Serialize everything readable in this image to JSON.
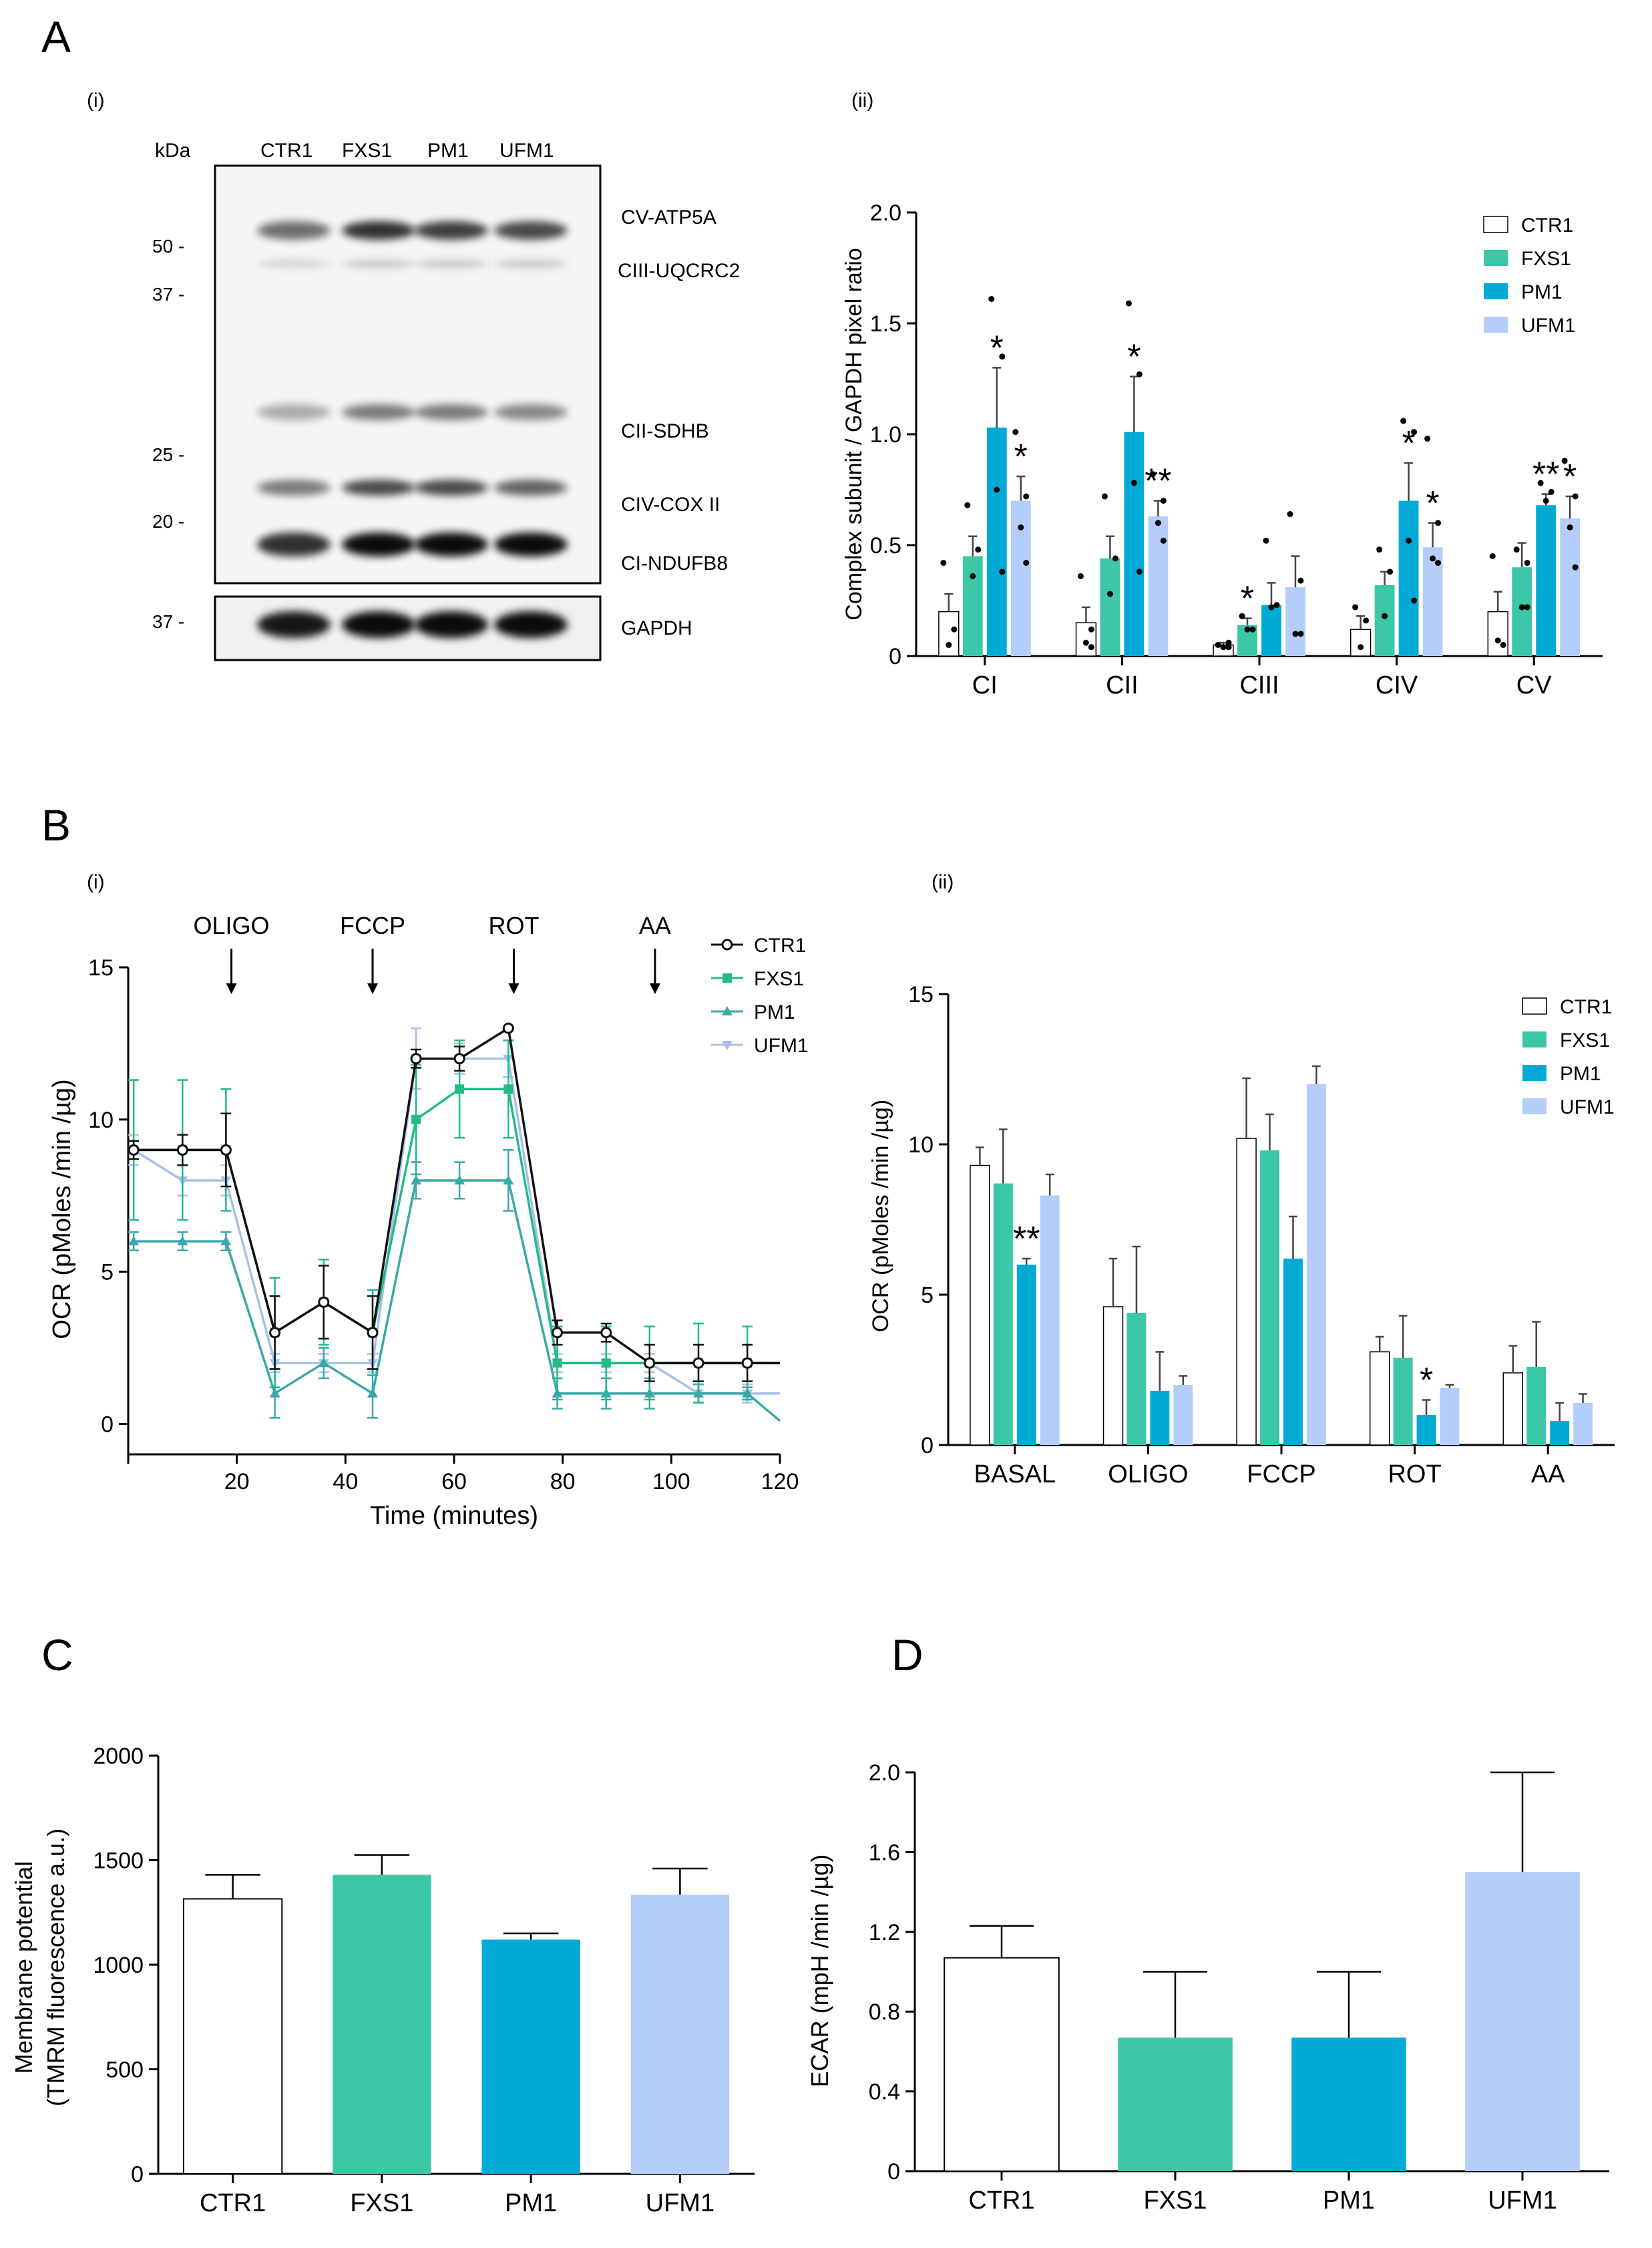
{
  "colors": {
    "CTR1": "#ffffff",
    "FXS1": "#3cc8a8",
    "PM1": "#00aad4",
    "UFM1": "#b4cdfa",
    "axis": "#000000",
    "line_CTR1": "#111111",
    "line_FXS1": "#22bb88",
    "line_PM1": "#3aa8a8",
    "line_UFM1": "#a8c0e8"
  },
  "panels": {
    "A": "A",
    "B": "B",
    "C": "C",
    "D": "D",
    "Ai": "(i)",
    "Aii": "(ii)",
    "Bi": "(i)",
    "Bii": "(ii)"
  },
  "blot": {
    "kda_label": "kDa",
    "lanes": [
      "CTR1",
      "FXS1",
      "PM1",
      "UFM1"
    ],
    "markers": [
      "50 -",
      "37 -",
      "25 -",
      "20 -"
    ],
    "gapdh_marker": "37 -",
    "bands": [
      "CV-ATP5A",
      "CIII-UQCRC2",
      "CII-SDHB",
      "CIV-COX II",
      "CI-NDUFB8"
    ],
    "gapdh": "GAPDH"
  },
  "chart_data": [
    {
      "id": "A-ii",
      "type": "bar",
      "ylabel": "Complex subunit / GAPDH pixel ratio",
      "ylim": [
        0,
        2.0
      ],
      "yticks": [
        "0",
        "0.5",
        "1.0",
        "1.5",
        "2.0"
      ],
      "categories": [
        "CI",
        "CII",
        "CIII",
        "CIV",
        "CV"
      ],
      "series": [
        {
          "name": "CTR1",
          "values": [
            0.2,
            0.15,
            0.05,
            0.12,
            0.2
          ],
          "err": [
            0.08,
            0.07,
            0.01,
            0.06,
            0.09
          ]
        },
        {
          "name": "FXS1",
          "values": [
            0.45,
            0.44,
            0.14,
            0.32,
            0.4
          ],
          "err": [
            0.09,
            0.1,
            0.03,
            0.06,
            0.11
          ]
        },
        {
          "name": "PM1",
          "values": [
            1.03,
            1.01,
            0.23,
            0.7,
            0.68
          ],
          "err": [
            0.27,
            0.25,
            0.1,
            0.17,
            0.05
          ]
        },
        {
          "name": "UFM1",
          "values": [
            0.7,
            0.63,
            0.31,
            0.49,
            0.62
          ],
          "err": [
            0.11,
            0.07,
            0.14,
            0.11,
            0.1
          ]
        }
      ],
      "points": [
        [
          [
            0.42,
            0.12,
            0.05
          ],
          [
            0.36,
            0.12,
            0.06,
            0.04
          ],
          [
            0.05,
            0.04,
            0.04,
            0.06
          ],
          [
            0.22,
            0.16,
            0.04
          ],
          [
            0.45,
            0.05,
            0.07
          ]
        ],
        [
          [
            0.68,
            0.48,
            0.36
          ],
          [
            0.72,
            0.44,
            0.28
          ],
          [
            0.18,
            0.12,
            0.12
          ],
          [
            0.48,
            0.38,
            0.18
          ],
          [
            0.48,
            0.42,
            0.22,
            0.22
          ]
        ],
        [
          [
            1.61,
            1.35,
            0.75,
            0.38
          ],
          [
            1.59,
            1.27,
            0.78,
            0.38
          ],
          [
            0.52,
            0.23,
            0.22
          ],
          [
            1.06,
            1.01,
            0.52,
            0.25
          ],
          [
            0.78,
            0.74,
            0.7
          ]
        ],
        [
          [
            1.01,
            0.72,
            0.58,
            0.42
          ],
          [
            0.82,
            0.7,
            0.6,
            0.52
          ],
          [
            0.64,
            0.34,
            0.1,
            0.1
          ],
          [
            0.98,
            0.6,
            0.44,
            0.42
          ],
          [
            0.88,
            0.72,
            0.58,
            0.4
          ]
        ]
      ],
      "stars": [
        [
          "",
          "",
          "*",
          "*"
        ],
        [
          "",
          "",
          "*",
          "**"
        ],
        [
          "",
          "*",
          "",
          ""
        ],
        [
          "",
          "",
          "*",
          "*"
        ],
        [
          "",
          "",
          "**",
          "*"
        ]
      ]
    },
    {
      "id": "B-i",
      "type": "line",
      "xlabel": "Time (minutes)",
      "ylabel": "OCR (pMoles /min /µg)",
      "xlim": [
        0,
        120
      ],
      "ylim": [
        -1,
        15
      ],
      "xticks": [
        "20",
        "40",
        "60",
        "80",
        "100",
        "120"
      ],
      "yticks": [
        "0",
        "5",
        "10",
        "15"
      ],
      "injections": [
        {
          "label": "OLIGO",
          "t": 19
        },
        {
          "label": "FCCP",
          "t": 45
        },
        {
          "label": "ROT",
          "t": 71
        },
        {
          "label": "AA",
          "t": 97
        }
      ],
      "x": [
        1,
        10,
        18,
        27,
        36,
        45,
        53,
        61,
        70,
        79,
        88,
        96,
        105,
        114,
        120
      ],
      "series": [
        {
          "name": "CTR1",
          "values": [
            9,
            9,
            9,
            3,
            4,
            3,
            12,
            12,
            13,
            3,
            3,
            2,
            2,
            2,
            2
          ],
          "err": [
            0.3,
            0.5,
            1.2,
            1.2,
            1.2,
            1.2,
            0.3,
            0.4,
            0,
            0.4,
            0.3,
            0.6,
            0.6,
            0.6,
            0
          ]
        },
        {
          "name": "FXS1",
          "values": [
            9,
            9,
            9,
            3,
            4,
            3,
            10,
            11,
            11,
            2,
            2,
            2,
            2,
            2,
            2
          ],
          "err": [
            2.3,
            2.3,
            2,
            1.8,
            1.4,
            1.4,
            1.8,
            1.6,
            1.6,
            1.2,
            1.2,
            1.2,
            1.3,
            1.2,
            0
          ]
        },
        {
          "name": "PM1",
          "values": [
            6,
            6,
            6,
            1,
            2,
            1,
            8,
            8,
            8,
            1,
            1,
            1,
            1,
            1,
            0.1
          ],
          "err": [
            0.3,
            0.3,
            0.3,
            0.8,
            0.5,
            0.8,
            0.6,
            0.6,
            1,
            0.5,
            0.5,
            0.5,
            0.3,
            0.2,
            0
          ]
        },
        {
          "name": "UFM1",
          "values": [
            9,
            8,
            8,
            2,
            2,
            2,
            12,
            12,
            12,
            2,
            2,
            2,
            1,
            1,
            1
          ],
          "err": [
            0.5,
            0.5,
            0.5,
            0.3,
            0.3,
            0.3,
            1,
            0.5,
            0.6,
            0.3,
            0.3,
            0.3,
            0.3,
            0.3,
            0
          ]
        }
      ]
    },
    {
      "id": "B-ii",
      "type": "bar",
      "ylabel": "OCR (pMoles /min /µg)",
      "ylim": [
        0,
        15
      ],
      "yticks": [
        "0",
        "5",
        "10",
        "15"
      ],
      "categories": [
        "BASAL",
        "OLIGO",
        "FCCP",
        "ROT",
        "AA"
      ],
      "series": [
        {
          "name": "CTR1",
          "values": [
            9.3,
            4.6,
            10.2,
            3.1,
            2.4
          ],
          "err": [
            0.6,
            1.6,
            2.0,
            0.5,
            0.9
          ]
        },
        {
          "name": "FXS1",
          "values": [
            8.7,
            4.4,
            9.8,
            2.9,
            2.6
          ],
          "err": [
            1.8,
            2.2,
            1.2,
            1.4,
            1.5
          ]
        },
        {
          "name": "PM1",
          "values": [
            6.0,
            1.8,
            6.2,
            1.0,
            0.8
          ],
          "err": [
            0.2,
            1.3,
            1.4,
            0.5,
            0.6
          ]
        },
        {
          "name": "UFM1",
          "values": [
            8.3,
            2.0,
            12.0,
            1.9,
            1.4
          ],
          "err": [
            0.7,
            0.3,
            0.6,
            0.1,
            0.3
          ]
        }
      ],
      "stars": [
        [
          "",
          "",
          "**",
          ""
        ],
        [
          "",
          "",
          "",
          ""
        ],
        [
          "",
          "",
          "",
          ""
        ],
        [
          "",
          "",
          "*",
          ""
        ],
        [
          "",
          "",
          "",
          ""
        ]
      ]
    },
    {
      "id": "C",
      "type": "bar",
      "ylabel": "Membrane potential",
      "ylabel2": "(TMRM fluorescence a.u.)",
      "ylim": [
        0,
        2000
      ],
      "yticks": [
        "0",
        "500",
        "1000",
        "1500",
        "2000"
      ],
      "categories": [
        "CTR1",
        "FXS1",
        "PM1",
        "UFM1"
      ],
      "values": [
        1315,
        1430,
        1120,
        1335
      ],
      "err": [
        115,
        95,
        30,
        125
      ]
    },
    {
      "id": "D",
      "type": "bar",
      "ylabel": "ECAR (mpH /min /µg)",
      "ylim": [
        0,
        2.0
      ],
      "yticks": [
        "0",
        "0.4",
        "0.8",
        "1.2",
        "1.6",
        "2.0"
      ],
      "categories": [
        "CTR1",
        "FXS1",
        "PM1",
        "UFM1"
      ],
      "values": [
        1.07,
        0.67,
        0.67,
        1.5
      ],
      "err": [
        0.16,
        0.33,
        0.33,
        0.5
      ]
    }
  ]
}
